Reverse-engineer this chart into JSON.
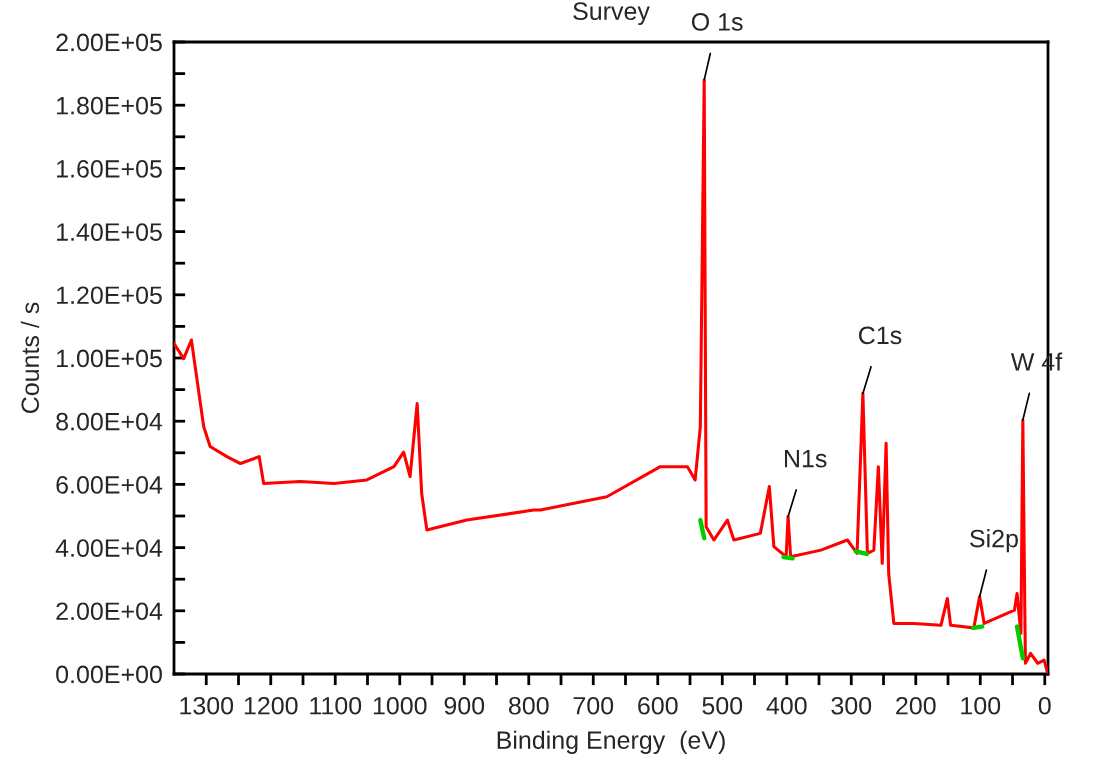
{
  "chart_data": {
    "type": "line",
    "title": "Survey",
    "xlabel": "Binding Energy  (eV)",
    "ylabel": "Counts / s",
    "xlim": [
      1350,
      -5
    ],
    "ylim": [
      0,
      200000
    ],
    "xticks": [
      1300,
      {
        "value": 1250,
        "label": null
      },
      1200,
      {
        "value": 1150,
        "label": null
      },
      1100,
      {
        "value": 1050,
        "label": null
      },
      1000,
      {
        "value": 950,
        "label": null
      },
      900,
      {
        "value": 850,
        "label": null
      },
      800,
      {
        "value": 750,
        "label": null
      },
      700,
      {
        "value": 650,
        "label": null
      },
      600,
      {
        "value": 550,
        "label": null
      },
      500,
      {
        "value": 450,
        "label": null
      },
      400,
      {
        "value": 350,
        "label": null
      },
      300,
      {
        "value": 250,
        "label": null
      },
      200,
      {
        "value": 150,
        "label": null
      },
      100,
      {
        "value": 50,
        "label": null
      },
      0
    ],
    "yticks": [
      {
        "value": 0,
        "label": "0.00E+00"
      },
      {
        "value": 10000,
        "label": null
      },
      {
        "value": 20000,
        "label": "2.00E+04"
      },
      {
        "value": 30000,
        "label": null
      },
      {
        "value": 40000,
        "label": "4.00E+04"
      },
      {
        "value": 50000,
        "label": null
      },
      {
        "value": 60000,
        "label": "6.00E+04"
      },
      {
        "value": 70000,
        "label": null
      },
      {
        "value": 80000,
        "label": "8.00E+04"
      },
      {
        "value": 90000,
        "label": null
      },
      {
        "value": 100000,
        "label": "1.00E+05"
      },
      {
        "value": 110000,
        "label": null
      },
      {
        "value": 120000,
        "label": "1.20E+05"
      },
      {
        "value": 130000,
        "label": null
      },
      {
        "value": 140000,
        "label": "1.40E+05"
      },
      {
        "value": 150000,
        "label": null
      },
      {
        "value": 160000,
        "label": "1.60E+05"
      },
      {
        "value": 170000,
        "label": null
      },
      {
        "value": 180000,
        "label": "1.80E+05"
      },
      {
        "value": 190000,
        "label": null
      },
      {
        "value": 200000,
        "label": "2.00E+05"
      }
    ],
    "grid": false,
    "legend": false,
    "marker": "none",
    "line_style": "solid",
    "series": [
      {
        "color": "#ff0000",
        "x": [
          1350,
          1335,
          1323,
          1315,
          1304,
          1294,
          1268,
          1247,
          1218,
          1211,
          1154,
          1102,
          1051,
          1009,
          994,
          984,
          973,
          966,
          958,
          896,
          792,
          782,
          679,
          596,
          554,
          542,
          534,
          528,
          525,
          513,
          492,
          482,
          441,
          427,
          420,
          401,
          398,
          394,
          347,
          306,
          291,
          282,
          275,
          265,
          258,
          252,
          246,
          242,
          234,
          203,
          161,
          151,
          146,
          110,
          101,
          94,
          47,
          43,
          37,
          34,
          31,
          30,
          22,
          11,
          1,
          -4
        ],
        "values": [
          104600,
          99800,
          105700,
          94100,
          78300,
          72000,
          68800,
          66600,
          68800,
          60300,
          60900,
          60300,
          61400,
          65600,
          70200,
          62500,
          85600,
          57100,
          45600,
          48700,
          51900,
          51900,
          56100,
          65600,
          65600,
          61400,
          78300,
          188000,
          46600,
          42400,
          48700,
          42400,
          44500,
          59300,
          40300,
          37100,
          49800,
          37100,
          39200,
          42400,
          38200,
          88800,
          38200,
          39200,
          65600,
          35000,
          73000,
          31800,
          16000,
          16000,
          15400,
          23900,
          15400,
          14600,
          24500,
          16000,
          20200,
          25500,
          12800,
          80400,
          21300,
          3400,
          6500,
          3400,
          4400,
          600
        ]
      },
      {
        "color": "#00cc00",
        "x": [
          534,
          528
        ],
        "values": [
          48700,
          43000
        ]
      },
      {
        "color": "#00cc00",
        "x": [
          405,
          391
        ],
        "values": [
          37000,
          36600
        ]
      },
      {
        "color": "#00cc00",
        "x": [
          293,
          276
        ],
        "values": [
          38800,
          38000
        ]
      },
      {
        "color": "#00cc00",
        "x": [
          111,
          97
        ],
        "values": [
          14600,
          15000
        ]
      },
      {
        "color": "#00cc00",
        "x": [
          43,
          34
        ],
        "values": [
          15000,
          5000
        ]
      }
    ],
    "annotations": [
      {
        "text": "O 1s",
        "x": 528,
        "y": 188000
      },
      {
        "text": "N1s",
        "x": 398,
        "y": 49800
      },
      {
        "text": "C1s",
        "x": 282,
        "y": 88800
      },
      {
        "text": "Si2p",
        "x": 101,
        "y": 24500
      },
      {
        "text": "W 4f",
        "x": 34,
        "y": 80400
      }
    ]
  }
}
